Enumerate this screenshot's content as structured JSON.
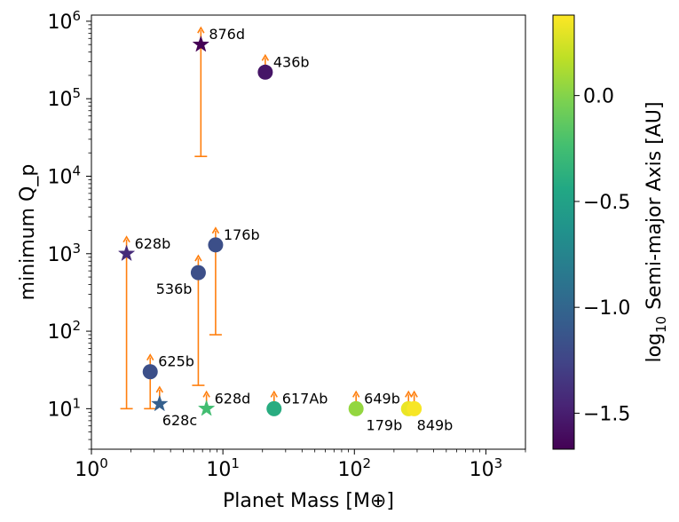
{
  "chart_data": {
    "type": "scatter",
    "xscale": "log",
    "yscale": "log",
    "xlim": [
      1,
      2000
    ],
    "ylim": [
      3,
      1200000
    ],
    "xlabel": "Planet Mass [M⊕]",
    "ylabel": "minimum Q_p",
    "x_ticks": [
      {
        "value": 1,
        "base": "10",
        "exp": "0"
      },
      {
        "value": 10,
        "base": "10",
        "exp": "1"
      },
      {
        "value": 100,
        "base": "10",
        "exp": "2"
      },
      {
        "value": 1000,
        "base": "10",
        "exp": "3"
      }
    ],
    "y_ticks": [
      {
        "value": 10,
        "base": "10",
        "exp": "1"
      },
      {
        "value": 100,
        "base": "10",
        "exp": "2"
      },
      {
        "value": 1000,
        "base": "10",
        "exp": "3"
      },
      {
        "value": 10000,
        "base": "10",
        "exp": "4"
      },
      {
        "value": 100000,
        "base": "10",
        "exp": "5"
      },
      {
        "value": 1000000,
        "base": "10",
        "exp": "6"
      }
    ],
    "colorbar": {
      "label": "log10 Semi-major Axis [AU]",
      "label_main": "log",
      "label_sub": "10",
      "label_rest": " Semi-major Axis [AU]",
      "range": [
        -1.67,
        0.38
      ],
      "colormap": "viridis",
      "ticks": [
        {
          "value": 0.0,
          "label": "0.0"
        },
        {
          "value": -0.5,
          "label": "−0.5"
        },
        {
          "value": -1.0,
          "label": "−1.0"
        },
        {
          "value": -1.5,
          "label": "−1.5"
        }
      ]
    },
    "arrow_color": "#ff7f0e",
    "points": [
      {
        "name": "876d",
        "mass": 6.8,
        "q": 500000,
        "loga": -1.67,
        "marker": "star",
        "q_lower": 18000,
        "label_pos": "right"
      },
      {
        "name": "436b",
        "mass": 21.0,
        "q": 220000,
        "loga": -1.55,
        "marker": "circle",
        "q_lower": null,
        "label_pos": "right"
      },
      {
        "name": "628b",
        "mass": 1.85,
        "q": 1000,
        "loga": -1.42,
        "marker": "star",
        "q_lower": 10,
        "label_pos": "right"
      },
      {
        "name": "176b",
        "mass": 8.8,
        "q": 1300,
        "loga": -1.18,
        "marker": "circle",
        "q_lower": 90,
        "label_pos": "right"
      },
      {
        "name": "536b",
        "mass": 6.5,
        "q": 570,
        "loga": -1.18,
        "marker": "circle",
        "q_lower": 20,
        "label_pos": "below-left"
      },
      {
        "name": "625b",
        "mass": 2.8,
        "q": 30,
        "loga": -1.18,
        "marker": "circle",
        "q_lower": 10,
        "label_pos": "right"
      },
      {
        "name": "628c",
        "mass": 3.3,
        "q": 11.5,
        "loga": -1.05,
        "marker": "star",
        "q_lower": null,
        "label_pos": "below-right"
      },
      {
        "name": "628d",
        "mass": 7.5,
        "q": 10,
        "loga": -0.25,
        "marker": "star",
        "q_lower": null,
        "label_pos": "right"
      },
      {
        "name": "617Ab",
        "mass": 24.5,
        "q": 10,
        "loga": -0.4,
        "marker": "circle",
        "q_lower": null,
        "label_pos": "right"
      },
      {
        "name": "649b",
        "mass": 103,
        "q": 10,
        "loga": 0.05,
        "marker": "circle",
        "q_lower": null,
        "label_pos": "right"
      },
      {
        "name": "179b",
        "mass": 258,
        "q": 10,
        "loga": 0.32,
        "marker": "circle",
        "q_lower": null,
        "label_pos": "below-left"
      },
      {
        "name": "849b",
        "mass": 285,
        "q": 10,
        "loga": 0.36,
        "marker": "circle",
        "q_lower": null,
        "label_pos": "below-right"
      }
    ]
  }
}
